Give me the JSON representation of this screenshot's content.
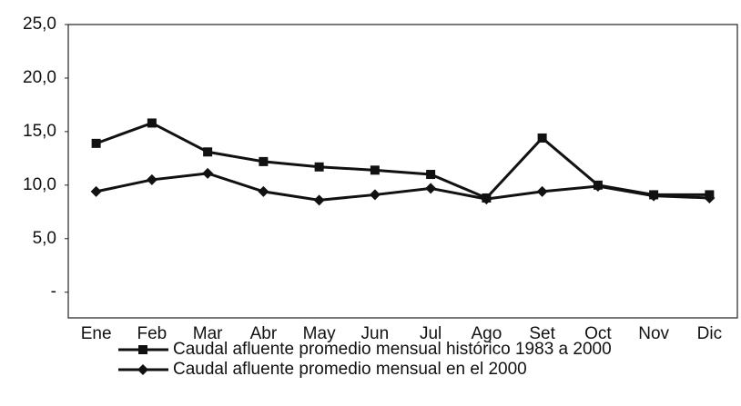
{
  "chart_data": {
    "type": "line",
    "categories": [
      "Ene",
      "Feb",
      "Mar",
      "Abr",
      "May",
      "Jun",
      "Jul",
      "Ago",
      "Set",
      "Oct",
      "Nov",
      "Dic"
    ],
    "series": [
      {
        "name": "Caudal afluente promedio mensual histórico 1983 a 2000",
        "color": "#111111",
        "marker": "square",
        "values": [
          13.9,
          15.8,
          13.1,
          12.2,
          11.7,
          11.4,
          11.0,
          8.8,
          14.4,
          10.0,
          9.1,
          9.1
        ]
      },
      {
        "name": "Caudal afluente promedio mensual en el 2000",
        "color": "#111111",
        "marker": "diamond",
        "values": [
          9.4,
          10.5,
          11.1,
          9.4,
          8.6,
          9.1,
          9.7,
          8.7,
          9.4,
          9.9,
          9.0,
          8.8
        ]
      }
    ],
    "ylim": [
      -2.4,
      25
    ],
    "yticks": [
      {
        "value": 0,
        "label": "-"
      },
      {
        "value": 5,
        "label": "5,0"
      },
      {
        "value": 10,
        "label": "10,0"
      },
      {
        "value": 15,
        "label": "15,0"
      },
      {
        "value": 20,
        "label": "20,0"
      },
      {
        "value": 25,
        "label": "25,0"
      }
    ],
    "grid": false
  }
}
